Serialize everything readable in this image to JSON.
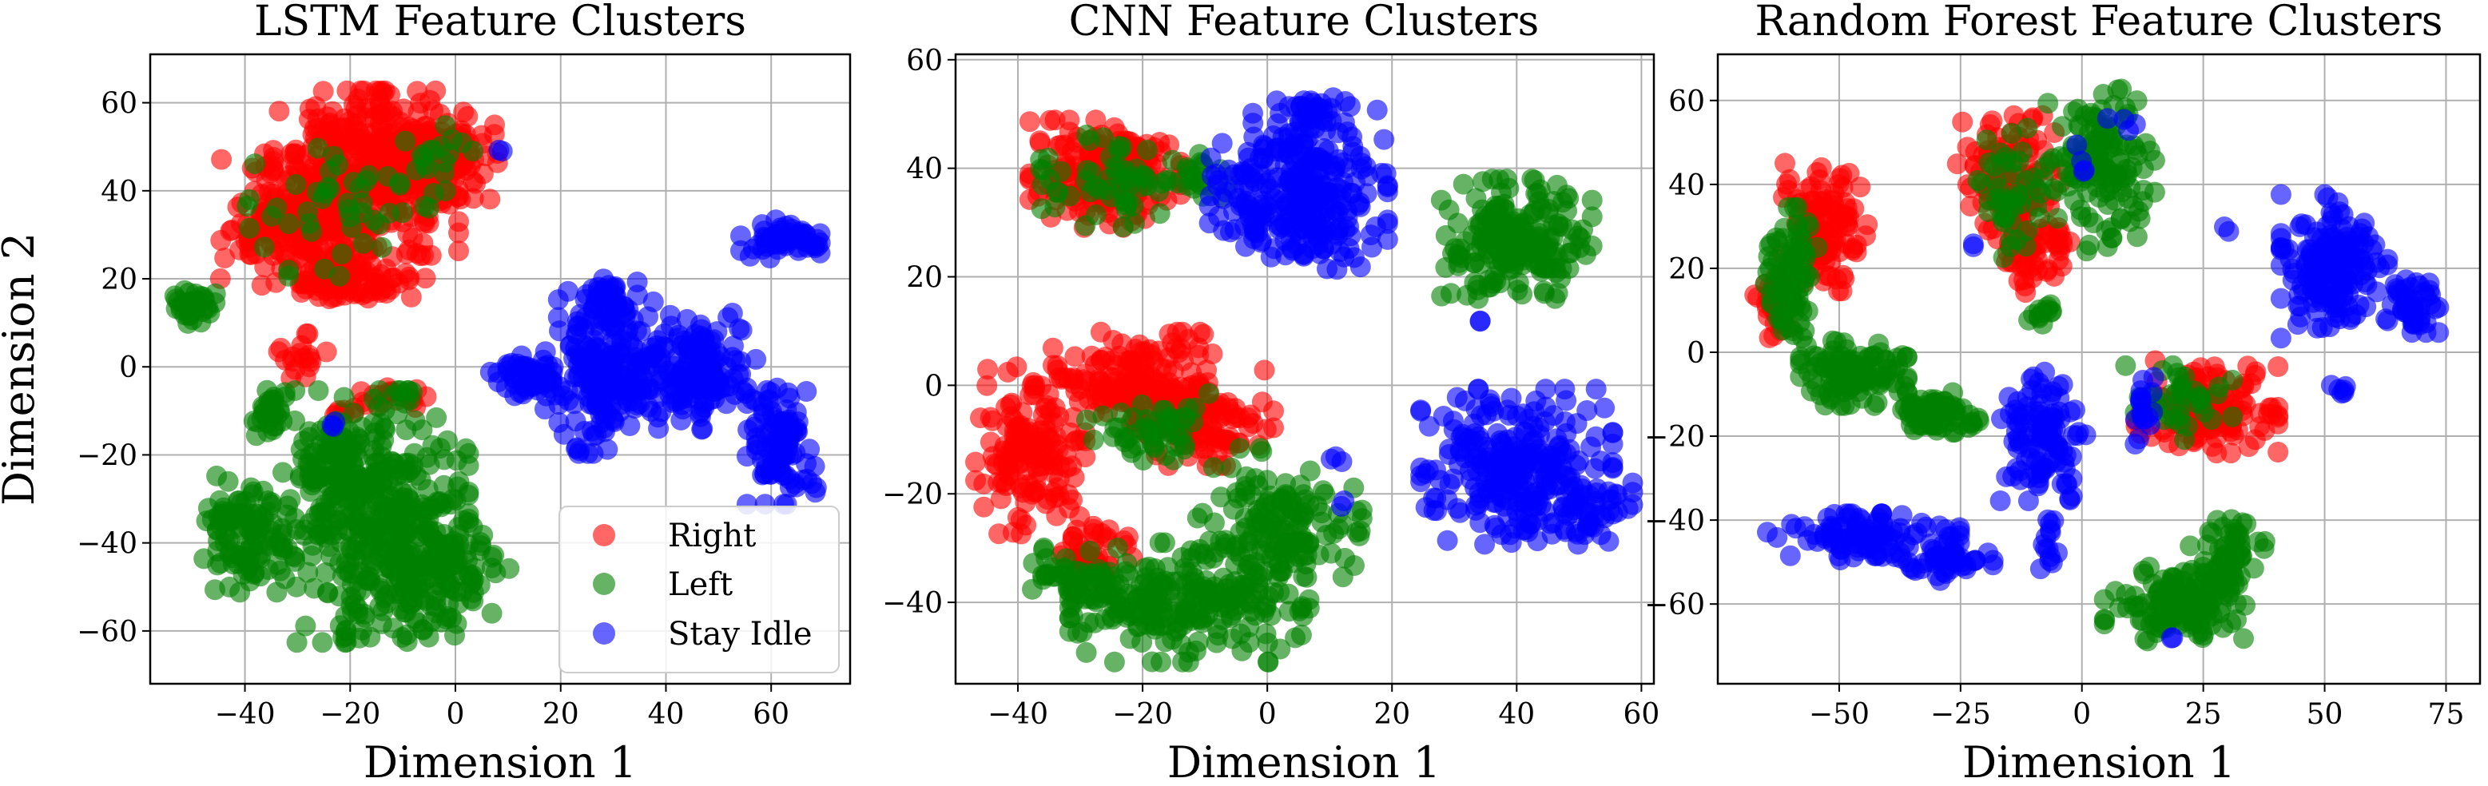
{
  "chart_data": [
    {
      "type": "scatter",
      "title": "LSTM Feature Clusters",
      "xlabel": "Dimension 1",
      "ylabel": "Dimension 2",
      "xlim": [
        -58,
        75
      ],
      "ylim": [
        -72,
        71
      ],
      "xticks": [
        -40,
        -20,
        0,
        20,
        40,
        60
      ],
      "yticks": [
        -60,
        -40,
        -20,
        0,
        20,
        40,
        60
      ],
      "xtick_labels": [
        "−40",
        "−20",
        "0",
        "20",
        "40",
        "60"
      ],
      "ytick_labels": [
        "−60",
        "−40",
        "−20",
        "0",
        "20",
        "40",
        "60"
      ],
      "grid": true,
      "legend": {
        "placement": "lower-right",
        "entries": [
          "Right",
          "Left",
          "Stay Idle"
        ]
      },
      "series": [
        {
          "name": "Right",
          "color": "#ff0000",
          "clusters": [
            {
              "cx": -17,
              "cy": 44,
              "rx": 16,
              "ry": 17,
              "n": 380
            },
            {
              "cx": -31,
              "cy": 33,
              "rx": 13,
              "ry": 14,
              "n": 170
            },
            {
              "cx": -3,
              "cy": 48,
              "rx": 10,
              "ry": 9,
              "n": 130
            },
            {
              "cx": -20,
              "cy": 20,
              "rx": 13,
              "ry": 6,
              "n": 90
            },
            {
              "cx": -30,
              "cy": 2,
              "rx": 5,
              "ry": 5,
              "n": 18
            },
            {
              "cx": -22,
              "cy": -10,
              "rx": 3,
              "ry": 2,
              "n": 8
            },
            {
              "cx": -12,
              "cy": -7,
              "rx": 8,
              "ry": 3,
              "n": 18
            }
          ]
        },
        {
          "name": "Left",
          "color": "#008000",
          "clusters": [
            {
              "cx": -14,
              "cy": -34,
              "rx": 15,
              "ry": 26,
              "n": 380
            },
            {
              "cx": -39,
              "cy": -38,
              "rx": 8,
              "ry": 12,
              "n": 120
            },
            {
              "cx": -24,
              "cy": -22,
              "rx": 8,
              "ry": 10,
              "n": 80
            },
            {
              "cx": -3,
              "cy": -46,
              "rx": 12,
              "ry": 14,
              "n": 120
            },
            {
              "cx": -35,
              "cy": -10,
              "rx": 3,
              "ry": 6,
              "n": 30
            },
            {
              "cx": -50,
              "cy": 14,
              "rx": 4,
              "ry": 4,
              "n": 35
            },
            {
              "cx": -22,
              "cy": 36,
              "rx": 16,
              "ry": 14,
              "n": 45
            },
            {
              "cx": -4,
              "cy": 46,
              "rx": 9,
              "ry": 8,
              "n": 20
            }
          ]
        },
        {
          "name": "Stay Idle",
          "color": "#0000ff",
          "clusters": [
            {
              "cx": 28,
              "cy": -1,
              "rx": 10,
              "ry": 17,
              "n": 180
            },
            {
              "cx": 45,
              "cy": -1,
              "rx": 11,
              "ry": 12,
              "n": 170
            },
            {
              "cx": 14,
              "cy": -3,
              "rx": 7,
              "ry": 5,
              "n": 50
            },
            {
              "cx": 62,
              "cy": -18,
              "rx": 6,
              "ry": 12,
              "n": 110
            },
            {
              "cx": 63,
              "cy": 29,
              "rx": 8,
              "ry": 4,
              "n": 60
            },
            {
              "cx": 28,
              "cy": 14,
              "rx": 6,
              "ry": 6,
              "n": 40
            },
            {
              "cx": 9,
              "cy": 49,
              "rx": 1,
              "ry": 1,
              "n": 2
            },
            {
              "cx": -24,
              "cy": -13,
              "rx": 2,
              "ry": 1,
              "n": 3
            }
          ]
        }
      ]
    },
    {
      "type": "scatter",
      "title": "CNN Feature Clusters",
      "xlabel": "Dimension 1",
      "ylabel": "",
      "xlim": [
        -50,
        62
      ],
      "ylim": [
        -55,
        61
      ],
      "xticks": [
        -40,
        -20,
        0,
        20,
        40,
        60
      ],
      "yticks": [
        -40,
        -20,
        0,
        20,
        40,
        60
      ],
      "xtick_labels": [
        "−40",
        "−20",
        "0",
        "20",
        "40",
        "60"
      ],
      "ytick_labels": [
        "−40",
        "−20",
        "0",
        "20",
        "40",
        "60"
      ],
      "grid": true,
      "series": [
        {
          "name": "Right",
          "color": "#ff0000",
          "clusters": [
            {
              "cx": -26,
              "cy": 39,
              "rx": 11,
              "ry": 9,
              "n": 200
            },
            {
              "cx": -38,
              "cy": -12,
              "rx": 8,
              "ry": 14,
              "n": 150
            },
            {
              "cx": -22,
              "cy": 1,
              "rx": 12,
              "ry": 8,
              "n": 150
            },
            {
              "cx": -10,
              "cy": -6,
              "rx": 10,
              "ry": 8,
              "n": 110
            },
            {
              "cx": -28,
              "cy": -30,
              "rx": 7,
              "ry": 5,
              "n": 40
            }
          ]
        },
        {
          "name": "Left",
          "color": "#008000",
          "clusters": [
            {
              "cx": 40,
              "cy": 27,
              "rx": 11,
              "ry": 10,
              "n": 200
            },
            {
              "cx": -13,
              "cy": -40,
              "rx": 17,
              "ry": 10,
              "n": 220
            },
            {
              "cx": 2,
              "cy": -27,
              "rx": 12,
              "ry": 14,
              "n": 160
            },
            {
              "cx": -30,
              "cy": -35,
              "rx": 7,
              "ry": 6,
              "n": 50
            },
            {
              "cx": -18,
              "cy": -8,
              "rx": 10,
              "ry": 6,
              "n": 50
            },
            {
              "cx": -26,
              "cy": 38,
              "rx": 11,
              "ry": 8,
              "n": 60
            },
            {
              "cx": -10,
              "cy": 38,
              "rx": 4,
              "ry": 5,
              "n": 20
            }
          ]
        },
        {
          "name": "Stay Idle",
          "color": "#0000ff",
          "clusters": [
            {
              "cx": 5,
              "cy": 36,
              "rx": 13,
              "ry": 14,
              "n": 300
            },
            {
              "cx": 40,
              "cy": -15,
              "rx": 14,
              "ry": 13,
              "n": 260
            },
            {
              "cx": 7,
              "cy": 50,
              "rx": 5,
              "ry": 4,
              "n": 25
            },
            {
              "cx": 52,
              "cy": -22,
              "rx": 6,
              "ry": 5,
              "n": 40
            },
            {
              "cx": 10,
              "cy": -14,
              "rx": 2,
              "ry": 2,
              "n": 3
            },
            {
              "cx": 12,
              "cy": -22,
              "rx": 1,
              "ry": 1,
              "n": 2
            },
            {
              "cx": 34,
              "cy": 12,
              "rx": 1,
              "ry": 1,
              "n": 2
            }
          ]
        }
      ]
    },
    {
      "type": "scatter",
      "title": "Random Forest Feature Clusters",
      "xlabel": "Dimension 1",
      "ylabel": "",
      "xlim": [
        -75,
        82
      ],
      "ylim": [
        -79,
        71
      ],
      "xticks": [
        -50,
        -25,
        0,
        25,
        50,
        75
      ],
      "yticks": [
        -60,
        -40,
        -20,
        0,
        20,
        40,
        60
      ],
      "xtick_labels": [
        "−50",
        "−25",
        "0",
        "25",
        "50",
        "75"
      ],
      "ytick_labels": [
        "−60",
        "−40",
        "−20",
        "0",
        "20",
        "40",
        "60"
      ],
      "grid": true,
      "series": [
        {
          "name": "Right",
          "color": "#ff0000",
          "clusters": [
            {
              "cx": -53,
              "cy": 30,
              "rx": 8,
              "ry": 14,
              "n": 110
            },
            {
              "cx": -63,
              "cy": 12,
              "rx": 4,
              "ry": 8,
              "n": 30
            },
            {
              "cx": -15,
              "cy": 41,
              "rx": 10,
              "ry": 14,
              "n": 130
            },
            {
              "cx": -10,
              "cy": 22,
              "rx": 7,
              "ry": 8,
              "n": 50
            },
            {
              "cx": 25,
              "cy": -13,
              "rx": 14,
              "ry": 10,
              "n": 150
            }
          ]
        },
        {
          "name": "Left",
          "color": "#008000",
          "clusters": [
            {
              "cx": -60,
              "cy": 18,
              "rx": 5,
              "ry": 15,
              "n": 90
            },
            {
              "cx": -47,
              "cy": -5,
              "rx": 10,
              "ry": 7,
              "n": 120
            },
            {
              "cx": -30,
              "cy": -15,
              "rx": 8,
              "ry": 5,
              "n": 80
            },
            {
              "cx": 4,
              "cy": 43,
              "rx": 10,
              "ry": 18,
              "n": 130
            },
            {
              "cx": -14,
              "cy": 38,
              "rx": 8,
              "ry": 14,
              "n": 50
            },
            {
              "cx": 20,
              "cy": -60,
              "rx": 14,
              "ry": 8,
              "n": 140
            },
            {
              "cx": 30,
              "cy": -48,
              "rx": 7,
              "ry": 8,
              "n": 60
            },
            {
              "cx": 20,
              "cy": -12,
              "rx": 10,
              "ry": 8,
              "n": 40
            },
            {
              "cx": -8,
              "cy": 10,
              "rx": 4,
              "ry": 3,
              "n": 12
            }
          ]
        },
        {
          "name": "Stay Idle",
          "color": "#0000ff",
          "clusters": [
            {
              "cx": -45,
              "cy": -44,
              "rx": 18,
              "ry": 5,
              "n": 110
            },
            {
              "cx": -27,
              "cy": -50,
              "rx": 8,
              "ry": 4,
              "n": 40
            },
            {
              "cx": -8,
              "cy": -20,
              "rx": 8,
              "ry": 14,
              "n": 110
            },
            {
              "cx": 52,
              "cy": 20,
              "rx": 10,
              "ry": 16,
              "n": 180
            },
            {
              "cx": 68,
              "cy": 11,
              "rx": 5,
              "ry": 7,
              "n": 50
            },
            {
              "cx": 53,
              "cy": -9,
              "rx": 2,
              "ry": 2,
              "n": 6
            },
            {
              "cx": -7,
              "cy": -45,
              "rx": 2,
              "ry": 6,
              "n": 14
            },
            {
              "cx": 13,
              "cy": -12,
              "rx": 3,
              "ry": 9,
              "n": 18
            },
            {
              "cx": 8,
              "cy": 55,
              "rx": 4,
              "ry": 2,
              "n": 4
            },
            {
              "cx": 0,
              "cy": 46,
              "rx": 1,
              "ry": 4,
              "n": 4
            },
            {
              "cx": -22,
              "cy": 25,
              "rx": 1,
              "ry": 1,
              "n": 2
            },
            {
              "cx": 30,
              "cy": 29,
              "rx": 1,
              "ry": 1,
              "n": 2
            },
            {
              "cx": 19,
              "cy": -68,
              "rx": 1,
              "ry": 1,
              "n": 2
            }
          ]
        }
      ]
    }
  ]
}
